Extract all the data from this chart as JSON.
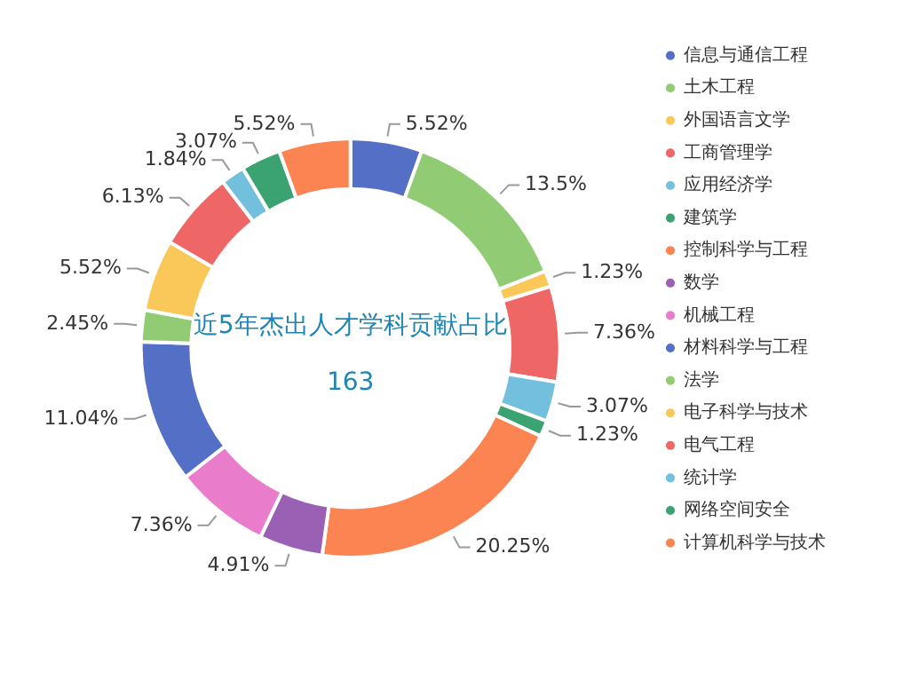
{
  "chart_data": {
    "type": "donut",
    "title": "近5年杰出人才学科贡献占比",
    "subtitle": "163",
    "categories": [
      "信息与通信工程",
      "土木工程",
      "外国语言文学",
      "工商管理学",
      "应用经济学",
      "建筑学",
      "控制科学与工程",
      "数学",
      "机械工程",
      "材料科学与工程",
      "法学",
      "电子科学与技术",
      "电气工程",
      "统计学",
      "网络空间安全",
      "计算机科学与技术"
    ],
    "values": [
      5.52,
      13.5,
      1.23,
      7.36,
      3.07,
      1.23,
      20.25,
      4.91,
      7.36,
      11.04,
      2.45,
      5.52,
      6.13,
      1.84,
      3.07,
      5.52
    ],
    "value_labels": [
      "5.52%",
      "13.5%",
      "1.23%",
      "7.36%",
      "3.07%",
      "1.23%",
      "20.25%",
      "4.91%",
      "7.36%",
      "11.04%",
      "2.45%",
      "5.52%",
      "6.13%",
      "1.84%",
      "3.07%",
      "5.52%"
    ],
    "colors": [
      "#5470c6",
      "#91cc75",
      "#fac858",
      "#ee6666",
      "#73c0de",
      "#3ba272",
      "#fc8452",
      "#9a60b4",
      "#ea7ccc",
      "#5470c6",
      "#91cc75",
      "#fac858",
      "#ee6666",
      "#73c0de",
      "#3ba272",
      "#fc8452"
    ],
    "legend": "right"
  }
}
